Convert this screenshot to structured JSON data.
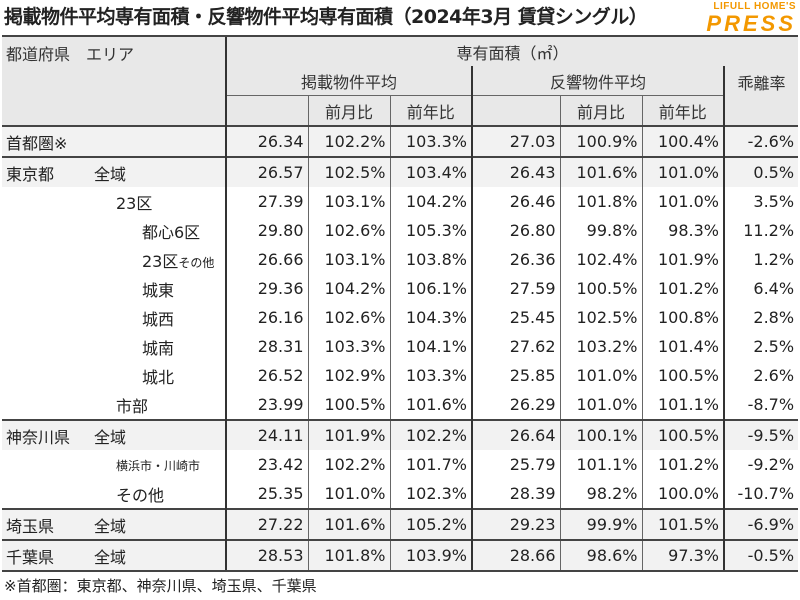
{
  "title": "掲載物件平均専有面積・反響物件平均専有面積（2024年3月 賃貸シングル）",
  "logo": {
    "top": "LIFULL HOME'S",
    "main": "PRESS"
  },
  "header": {
    "pref_area": "都道府県　エリア",
    "area_unit": "専有面積（㎡）",
    "listed_avg": "掲載物件平均",
    "response_avg": "反響物件平均",
    "divergence": "乖離率",
    "mom": "前月比",
    "yoy": "前年比"
  },
  "rows": [
    {
      "pref": "首都圏※",
      "area": "",
      "l": "26.34",
      "lm": "102.2%",
      "ly": "103.3%",
      "r": "27.03",
      "rm": "100.9%",
      "ry": "100.4%",
      "d": "-2.6%"
    },
    {
      "pref": "東京都",
      "area": "全域",
      "l": "26.57",
      "lm": "102.5%",
      "ly": "103.4%",
      "r": "26.43",
      "rm": "101.6%",
      "ry": "101.0%",
      "d": "0.5%"
    },
    {
      "pref": "",
      "area": "23区",
      "l": "27.39",
      "lm": "103.1%",
      "ly": "104.2%",
      "r": "26.46",
      "rm": "101.8%",
      "ry": "101.0%",
      "d": "3.5%"
    },
    {
      "pref": "",
      "area": "都心6区",
      "l": "29.80",
      "lm": "102.6%",
      "ly": "105.3%",
      "r": "26.80",
      "rm": "99.8%",
      "ry": "98.3%",
      "d": "11.2%"
    },
    {
      "pref": "",
      "area": "23区",
      "area_sub": "その他",
      "l": "26.66",
      "lm": "103.1%",
      "ly": "103.8%",
      "r": "26.36",
      "rm": "102.4%",
      "ry": "101.9%",
      "d": "1.2%"
    },
    {
      "pref": "",
      "area": "城東",
      "l": "29.36",
      "lm": "104.2%",
      "ly": "106.1%",
      "r": "27.59",
      "rm": "100.5%",
      "ry": "101.2%",
      "d": "6.4%"
    },
    {
      "pref": "",
      "area": "城西",
      "l": "26.16",
      "lm": "102.6%",
      "ly": "104.3%",
      "r": "25.45",
      "rm": "102.5%",
      "ry": "100.8%",
      "d": "2.8%"
    },
    {
      "pref": "",
      "area": "城南",
      "l": "28.31",
      "lm": "103.3%",
      "ly": "104.1%",
      "r": "27.62",
      "rm": "103.2%",
      "ry": "101.4%",
      "d": "2.5%"
    },
    {
      "pref": "",
      "area": "城北",
      "l": "26.52",
      "lm": "102.9%",
      "ly": "103.3%",
      "r": "25.85",
      "rm": "101.0%",
      "ry": "100.5%",
      "d": "2.6%"
    },
    {
      "pref": "",
      "area": "市部",
      "l": "23.99",
      "lm": "100.5%",
      "ly": "101.6%",
      "r": "26.29",
      "rm": "101.0%",
      "ry": "101.1%",
      "d": "-8.7%"
    },
    {
      "pref": "神奈川県",
      "area": "全域",
      "l": "24.11",
      "lm": "101.9%",
      "ly": "102.2%",
      "r": "26.64",
      "rm": "100.1%",
      "ry": "100.5%",
      "d": "-9.5%"
    },
    {
      "pref": "",
      "area": "横浜市・川崎市",
      "l": "23.42",
      "lm": "102.2%",
      "ly": "101.7%",
      "r": "25.79",
      "rm": "101.1%",
      "ry": "101.2%",
      "d": "-9.2%"
    },
    {
      "pref": "",
      "area": "その他",
      "l": "25.35",
      "lm": "101.0%",
      "ly": "102.3%",
      "r": "28.39",
      "rm": "98.2%",
      "ry": "100.0%",
      "d": "-10.7%"
    },
    {
      "pref": "埼玉県",
      "area": "全域",
      "l": "27.22",
      "lm": "101.6%",
      "ly": "105.2%",
      "r": "29.23",
      "rm": "99.9%",
      "ry": "101.5%",
      "d": "-6.9%"
    },
    {
      "pref": "千葉県",
      "area": "全域",
      "l": "28.53",
      "lm": "101.8%",
      "ly": "103.9%",
      "r": "28.66",
      "rm": "98.6%",
      "ry": "97.3%",
      "d": "-0.5%"
    }
  ],
  "footnote": "※首都圏：東京都、神奈川県、埼玉県、千葉県"
}
